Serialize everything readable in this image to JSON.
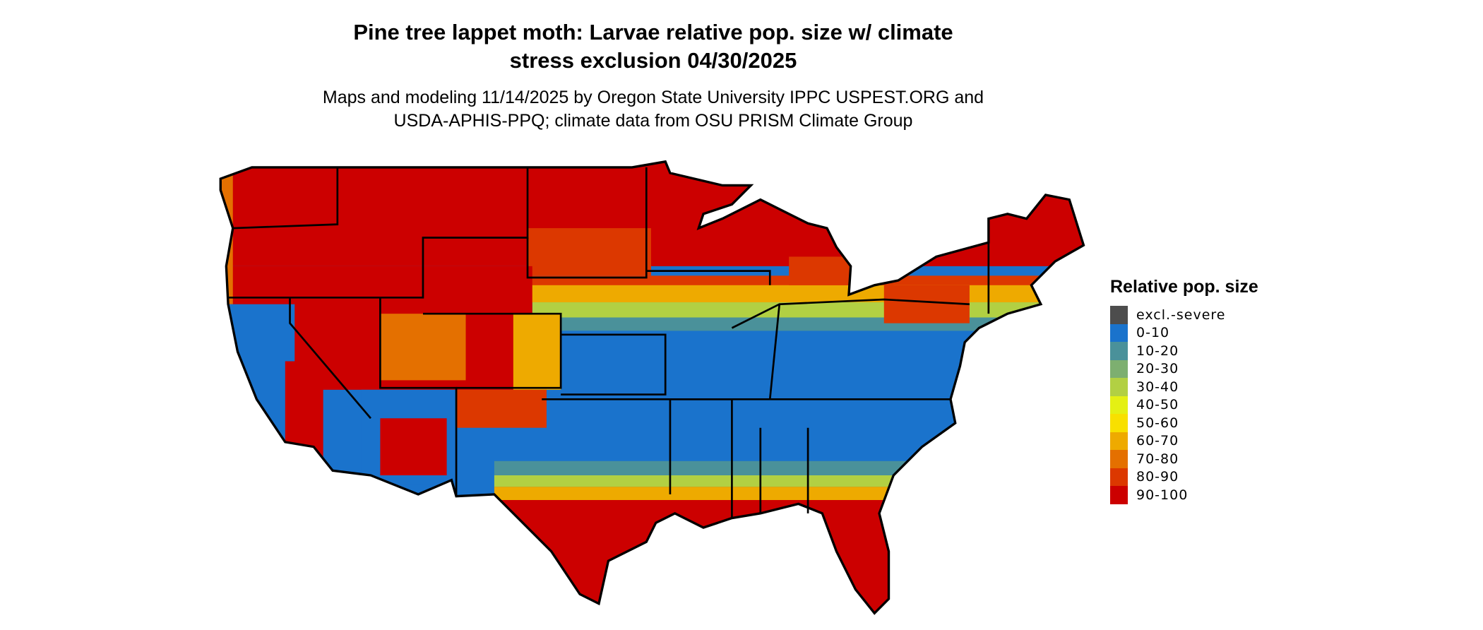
{
  "title_line1": "Pine tree lappet moth: Larvae relative pop. size w/ climate",
  "title_line2": "stress exclusion 04/30/2025",
  "subtitle_line1": "Maps and modeling 11/14/2025 by Oregon State University IPPC USPEST.ORG and",
  "subtitle_line2": "USDA-APHIS-PPQ; climate data from OSU PRISM Climate Group",
  "legend": {
    "title": "Relative pop. size",
    "items": [
      {
        "label": "excl.-severe",
        "color": "#4d4d4d"
      },
      {
        "label": "0-10",
        "color": "#1a73cc"
      },
      {
        "label": "10-20",
        "color": "#4a919a"
      },
      {
        "label": "20-30",
        "color": "#7daf70"
      },
      {
        "label": "30-40",
        "color": "#b2d043"
      },
      {
        "label": "40-50",
        "color": "#e4f014"
      },
      {
        "label": "50-60",
        "color": "#f8e000"
      },
      {
        "label": "60-70",
        "color": "#eeaa00"
      },
      {
        "label": "70-80",
        "color": "#e47000"
      },
      {
        "label": "80-90",
        "color": "#dc3800"
      },
      {
        "label": "90-100",
        "color": "#cc0000"
      }
    ]
  }
}
